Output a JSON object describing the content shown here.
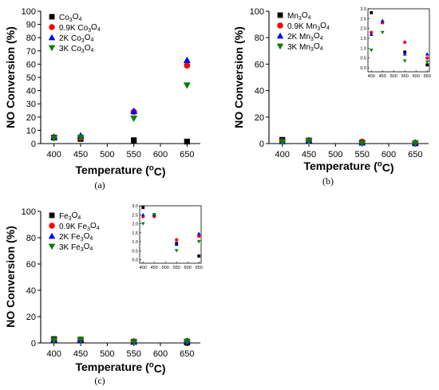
{
  "chart_data": [
    {
      "type": "scatter",
      "panel_label": "(a)",
      "xlabel": "Temperature (°C)",
      "ylabel": "NO Conversion (%)",
      "x_ticks": [
        400,
        450,
        500,
        550,
        600,
        650
      ],
      "y_ticks": [
        0,
        10,
        20,
        30,
        40,
        50,
        60,
        70,
        80,
        90,
        100
      ],
      "xlim": [
        375,
        675
      ],
      "ylim": [
        0,
        100
      ],
      "legend_position": "top-left",
      "series": [
        {
          "name": "Co3O4",
          "marker": "square",
          "color": "#000000",
          "points": [
            [
              400,
              4.5
            ],
            [
              450,
              3.5
            ],
            [
              550,
              2.5
            ],
            [
              650,
              1.5
            ]
          ]
        },
        {
          "name": "0.9K Co3O4",
          "marker": "circle",
          "color": "#ff0000",
          "points": [
            [
              400,
              4.6
            ],
            [
              450,
              4.5
            ],
            [
              550,
              24
            ],
            [
              650,
              59
            ]
          ]
        },
        {
          "name": "2K Co3O4",
          "marker": "triangle-up",
          "color": "#0000ff",
          "points": [
            [
              400,
              5
            ],
            [
              450,
              6
            ],
            [
              550,
              24.5
            ],
            [
              650,
              63
            ]
          ]
        },
        {
          "name": "3K Co3O4",
          "marker": "triangle-down",
          "color": "#008000",
          "points": [
            [
              400,
              4
            ],
            [
              450,
              4.5
            ],
            [
              550,
              19
            ],
            [
              650,
              44
            ]
          ]
        }
      ]
    },
    {
      "type": "scatter",
      "panel_label": "(b)",
      "xlabel": "Temperature (°C)",
      "ylabel": "NO Conversion (%)",
      "x_ticks": [
        400,
        450,
        500,
        550,
        600,
        650
      ],
      "y_ticks": [
        0,
        20,
        40,
        60,
        80,
        100
      ],
      "xlim": [
        375,
        675
      ],
      "ylim": [
        0,
        100
      ],
      "legend_position": "top-left",
      "series": [
        {
          "name": "Mn3O4",
          "marker": "square",
          "color": "#000000",
          "points": [
            [
              400,
              2.8
            ],
            [
              450,
              2.3
            ],
            [
              550,
              0.8
            ],
            [
              650,
              0.15
            ]
          ]
        },
        {
          "name": "0.9K Mn3O4",
          "marker": "circle",
          "color": "#ff0000",
          "points": [
            [
              400,
              1.8
            ],
            [
              450,
              2.3
            ],
            [
              550,
              1.3
            ],
            [
              650,
              0.5
            ]
          ]
        },
        {
          "name": "2K Mn3O4",
          "marker": "triangle-up",
          "color": "#0000ff",
          "points": [
            [
              400,
              1.7
            ],
            [
              450,
              2.4
            ],
            [
              550,
              0.7
            ],
            [
              650,
              0.7
            ]
          ]
        },
        {
          "name": "3K Mn3O4",
          "marker": "triangle-down",
          "color": "#008000",
          "points": [
            [
              400,
              0.9
            ],
            [
              450,
              1.8
            ],
            [
              550,
              0.35
            ],
            [
              650,
              0.3
            ]
          ]
        }
      ],
      "inset": {
        "x_ticks": [
          400,
          450,
          500,
          550,
          600,
          650
        ],
        "y_ticks": [
          0.0,
          0.5,
          1.0,
          1.5,
          2.0,
          2.5,
          3.0
        ],
        "xlim": [
          385,
          660
        ],
        "ylim": [
          -0.2,
          3.0
        ]
      }
    },
    {
      "type": "scatter",
      "panel_label": "(c)",
      "xlabel": "Temperature (°C)",
      "ylabel": "NO Conversion (%)",
      "x_ticks": [
        400,
        450,
        500,
        550,
        600,
        650
      ],
      "y_ticks": [
        0,
        20,
        40,
        60,
        80,
        100
      ],
      "xlim": [
        375,
        675
      ],
      "ylim": [
        0,
        100
      ],
      "legend_position": "top-left",
      "series": [
        {
          "name": "Fe3O4",
          "marker": "square",
          "color": "#000000",
          "points": [
            [
              400,
              2.9
            ],
            [
              450,
              2.5
            ],
            [
              550,
              0.9
            ],
            [
              650,
              0.2
            ]
          ]
        },
        {
          "name": "0.9K Fe3O4",
          "marker": "circle",
          "color": "#ff0000",
          "points": [
            [
              400,
              2.4
            ],
            [
              450,
              2.4
            ],
            [
              550,
              1.1
            ],
            [
              650,
              1.3
            ]
          ]
        },
        {
          "name": "2K Fe3O4",
          "marker": "triangle-up",
          "color": "#0000ff",
          "points": [
            [
              400,
              2.5
            ],
            [
              450,
              2.5
            ],
            [
              550,
              0.85
            ],
            [
              650,
              1.45
            ]
          ]
        },
        {
          "name": "3K Fe3O4",
          "marker": "triangle-down",
          "color": "#008000",
          "points": [
            [
              400,
              2.0
            ],
            [
              450,
              2.5
            ],
            [
              550,
              0.5
            ],
            [
              650,
              1.0
            ]
          ]
        }
      ],
      "inset": {
        "x_ticks": [
          400,
          450,
          500,
          550,
          600,
          650
        ],
        "y_ticks": [
          0.0,
          0.5,
          1.0,
          1.5,
          2.0,
          2.5,
          3.0
        ],
        "xlim": [
          385,
          660
        ],
        "ylim": [
          -0.2,
          3.0
        ]
      }
    }
  ]
}
